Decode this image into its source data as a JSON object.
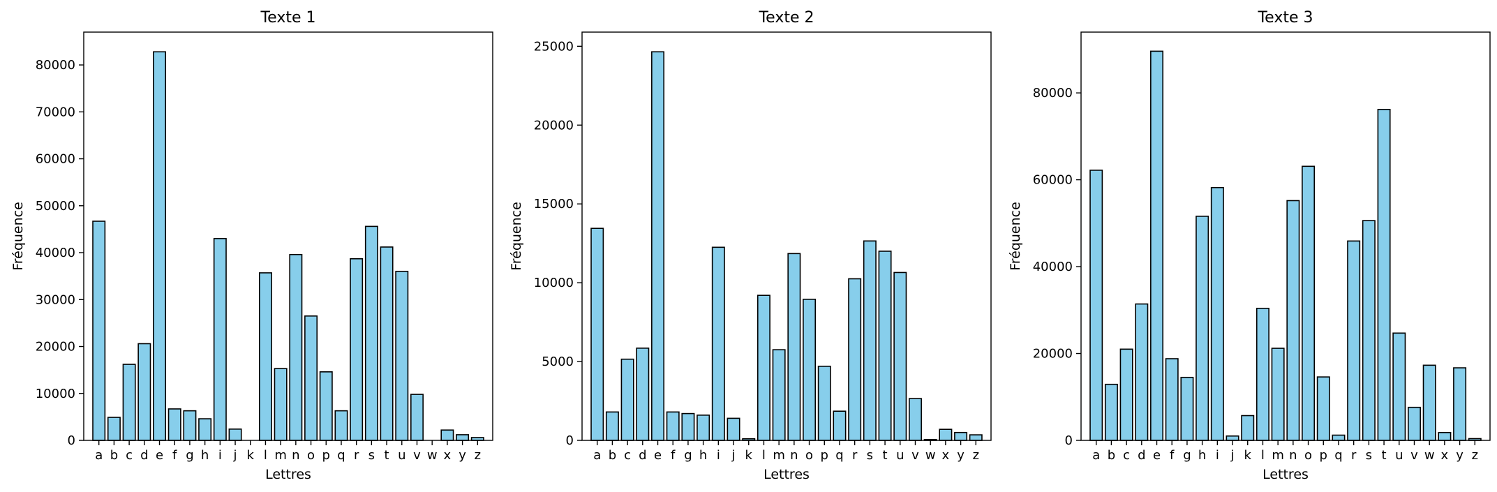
{
  "chart_data": [
    {
      "type": "bar",
      "title": "Texte 1",
      "xlabel": "Lettres",
      "ylabel": "Fréquence",
      "categories": [
        "a",
        "b",
        "c",
        "d",
        "e",
        "f",
        "g",
        "h",
        "i",
        "j",
        "k",
        "l",
        "m",
        "n",
        "o",
        "p",
        "q",
        "r",
        "s",
        "t",
        "u",
        "v",
        "w",
        "x",
        "y",
        "z"
      ],
      "values": [
        46700,
        4900,
        16200,
        20600,
        82800,
        6700,
        6300,
        4600,
        43000,
        2400,
        0,
        35700,
        15300,
        39600,
        26500,
        14600,
        6300,
        38700,
        45600,
        41200,
        36000,
        9800,
        0,
        2200,
        1200,
        600
      ],
      "ylim": [
        0,
        87000
      ],
      "yticks": [
        0,
        10000,
        20000,
        30000,
        40000,
        50000,
        60000,
        70000,
        80000
      ],
      "bar_color": "#87ceeb",
      "grid": false
    },
    {
      "type": "bar",
      "title": "Texte 2",
      "xlabel": "Lettres",
      "ylabel": "Fréquence",
      "categories": [
        "a",
        "b",
        "c",
        "d",
        "e",
        "f",
        "g",
        "h",
        "i",
        "j",
        "k",
        "l",
        "m",
        "n",
        "o",
        "p",
        "q",
        "r",
        "s",
        "t",
        "u",
        "v",
        "w",
        "x",
        "y",
        "z"
      ],
      "values": [
        13450,
        1800,
        5150,
        5850,
        24650,
        1800,
        1700,
        1600,
        12250,
        1400,
        100,
        9200,
        5750,
        11850,
        8950,
        4700,
        1850,
        10250,
        12650,
        12000,
        10650,
        2650,
        50,
        700,
        500,
        350
      ],
      "ylim": [
        0,
        25900
      ],
      "yticks": [
        0,
        5000,
        10000,
        15000,
        20000,
        25000
      ],
      "bar_color": "#87ceeb",
      "grid": false
    },
    {
      "type": "bar",
      "title": "Texte 3",
      "xlabel": "Lettres",
      "ylabel": "Fréquence",
      "categories": [
        "a",
        "b",
        "c",
        "d",
        "e",
        "f",
        "g",
        "h",
        "i",
        "j",
        "k",
        "l",
        "m",
        "n",
        "o",
        "p",
        "q",
        "r",
        "s",
        "t",
        "u",
        "v",
        "w",
        "x",
        "y",
        "z"
      ],
      "values": [
        62200,
        12900,
        21000,
        31400,
        89600,
        18800,
        14500,
        51600,
        58200,
        1000,
        5700,
        30400,
        21200,
        55200,
        63100,
        14600,
        1200,
        45900,
        50600,
        76200,
        24700,
        7600,
        17300,
        1800,
        16700,
        400
      ],
      "ylim": [
        0,
        94000
      ],
      "yticks": [
        0,
        20000,
        40000,
        60000,
        80000
      ],
      "bar_color": "#87ceeb",
      "grid": false
    }
  ]
}
